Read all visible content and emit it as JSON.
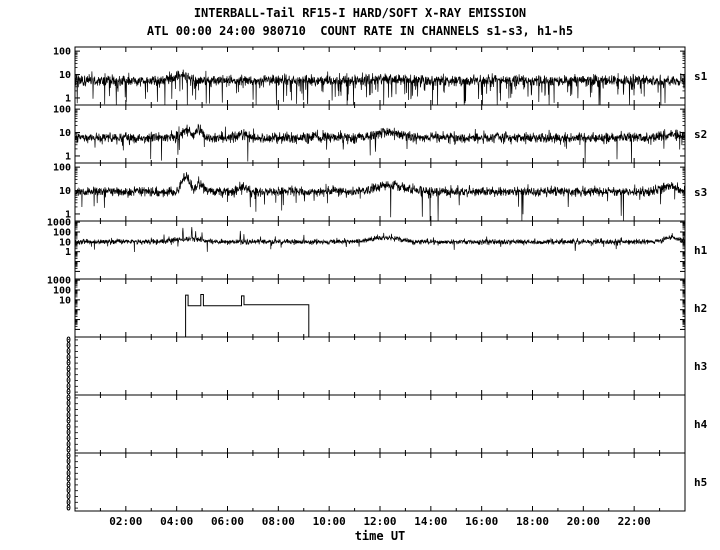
{
  "chart_data": {
    "type": "line",
    "title": "INTERBALL-Tail RF15-I HARD/SOFT X-RAY EMISSION",
    "subtitle": "ATL 00:00 24:00 980710  COUNT RATE IN CHANNELS s1-s3, h1-h5",
    "xlabel": "time UT",
    "x_range_hours": [
      0,
      24
    ],
    "x_major_tick_hours": [
      2,
      4,
      6,
      8,
      10,
      12,
      14,
      16,
      18,
      20,
      22
    ],
    "x_tick_labels": [
      "02:00",
      "04:00",
      "06:00",
      "08:00",
      "10:00",
      "12:00",
      "14:00",
      "16:00",
      "18:00",
      "20:00",
      "22:00"
    ],
    "yscale": "log",
    "grid": false,
    "legend": "none",
    "panels": [
      {
        "label": "s1",
        "ylim": [
          0.5,
          150
        ],
        "yticks": [
          100,
          10,
          1
        ],
        "series": {
          "kind": "noise",
          "seed": 101,
          "baseline": 5.5,
          "sigma": 0.28,
          "dropout_prob": 0.06,
          "bumps": [
            {
              "t": 4.2,
              "w": 0.3,
              "f": 1.7
            },
            {
              "t": 12.3,
              "w": 0.5,
              "f": 1.25
            }
          ]
        }
      },
      {
        "label": "s2",
        "ylim": [
          0.5,
          150
        ],
        "yticks": [
          100,
          10,
          1
        ],
        "series": {
          "kind": "noise",
          "seed": 202,
          "baseline": 6,
          "sigma": 0.26,
          "dropout_prob": 0.012,
          "bumps": [
            {
              "t": 4.35,
              "w": 0.15,
              "f": 2.2
            },
            {
              "t": 4.9,
              "w": 0.12,
              "f": 2.0
            },
            {
              "t": 6.6,
              "w": 0.2,
              "f": 1.4
            },
            {
              "t": 12.3,
              "w": 0.5,
              "f": 1.6
            },
            {
              "t": 23.4,
              "w": 0.3,
              "f": 1.3
            }
          ]
        }
      },
      {
        "label": "s3",
        "ylim": [
          0.5,
          150
        ],
        "yticks": [
          100,
          10,
          1
        ],
        "series": {
          "kind": "noise",
          "seed": 303,
          "baseline": 9,
          "sigma": 0.24,
          "dropout_prob": 0.008,
          "bumps": [
            {
              "t": 4.35,
              "w": 0.12,
              "f": 4.5
            },
            {
              "t": 4.9,
              "w": 0.12,
              "f": 2.2
            },
            {
              "t": 6.6,
              "w": 0.15,
              "f": 1.6
            },
            {
              "t": 12.4,
              "w": 0.5,
              "f": 1.8
            },
            {
              "t": 23.4,
              "w": 0.25,
              "f": 1.7
            }
          ]
        }
      },
      {
        "label": "h1",
        "ylim": [
          0.0017,
          1300
        ],
        "yticks": [
          1000,
          100,
          10,
          1
        ],
        "series": {
          "kind": "noise",
          "seed": 404,
          "baseline": 10,
          "sigma": 0.3,
          "dropout_prob": 0.01,
          "bumps": [
            {
              "t": 4.5,
              "w": 0.5,
              "f": 2.0
            },
            {
              "t": 12.2,
              "w": 0.45,
              "f": 2.6
            },
            {
              "t": 23.5,
              "w": 0.25,
              "f": 3.0
            }
          ],
          "spikes": [
            {
              "t": 3.5,
              "v": 55
            },
            {
              "t": 3.7,
              "v": 35
            },
            {
              "t": 4.25,
              "v": 260
            },
            {
              "t": 4.6,
              "v": 320
            },
            {
              "t": 4.75,
              "v": 120
            },
            {
              "t": 5.0,
              "v": 90
            },
            {
              "t": 6.5,
              "v": 130
            },
            {
              "t": 6.65,
              "v": 60
            },
            {
              "t": 7.3,
              "v": 35
            },
            {
              "t": 9.0,
              "v": 50
            },
            {
              "t": 10.3,
              "v": 25
            },
            {
              "t": 11.9,
              "v": 55
            },
            {
              "t": 12.15,
              "v": 80
            },
            {
              "t": 12.45,
              "v": 65
            },
            {
              "t": 14.1,
              "v": 28
            },
            {
              "t": 16.2,
              "v": 35
            },
            {
              "t": 18.1,
              "v": 22
            },
            {
              "t": 20.0,
              "v": 20
            },
            {
              "t": 21.5,
              "v": 28
            },
            {
              "t": 23.5,
              "v": 75
            }
          ]
        }
      },
      {
        "label": "h2",
        "ylim": [
          0.0017,
          1300
        ],
        "yticks": [
          1000,
          100,
          10
        ],
        "series": {
          "kind": "steps",
          "steps": [
            [
              4.35,
              4.45,
              30
            ],
            [
              4.45,
              4.95,
              2.5
            ],
            [
              4.95,
              5.05,
              35
            ],
            [
              5.05,
              6.55,
              2.5
            ],
            [
              6.55,
              6.65,
              25
            ],
            [
              6.65,
              9.2,
              3.2
            ]
          ]
        }
      },
      {
        "label": "h3",
        "ytick_zeros": 10,
        "series": null
      },
      {
        "label": "h4",
        "ytick_zeros": 10,
        "series": null
      },
      {
        "label": "h5",
        "ytick_zeros": 10,
        "series": null
      }
    ]
  }
}
